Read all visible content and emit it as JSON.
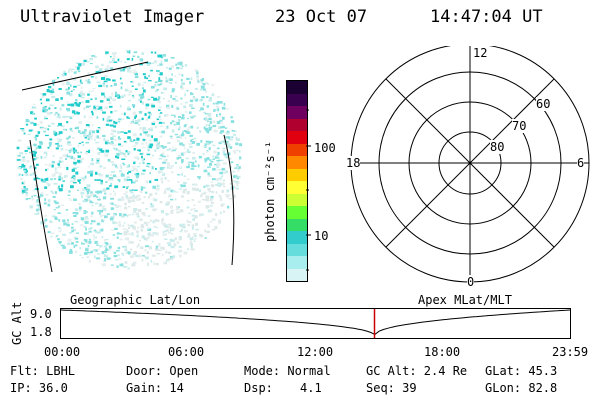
{
  "header": {
    "instrument": "Ultraviolet Imager",
    "date": "23 Oct 07",
    "time": "14:47:04 UT"
  },
  "colorbar": {
    "unit_label": "photon cm⁻²s⁻¹",
    "ticks": [
      "100",
      "10"
    ],
    "colors": [
      "#1a0033",
      "#3a0050",
      "#700060",
      "#b00030",
      "#e00010",
      "#f04000",
      "#ff8800",
      "#ffcc00",
      "#ffff33",
      "#ccff33",
      "#66ff33",
      "#33dd66",
      "#33cccc",
      "#66dddd",
      "#a8eeee",
      "#d8f4f4"
    ]
  },
  "polar_plot": {
    "mlt_labels": {
      "top": "12",
      "left": "18",
      "right": "6",
      "bottom": "0"
    },
    "lat_labels": [
      "60",
      "70",
      "80"
    ]
  },
  "timeline": {
    "left_title": "Geographic Lat/Lon",
    "right_title": "Apex MLat/MLT",
    "ylabel": "GC Alt",
    "ymax": "9.0",
    "ymin": "1.8",
    "xticks": [
      "00:00",
      "06:00",
      "12:00",
      "18:00",
      "23:59"
    ],
    "marker_time_hours": 14.78
  },
  "footer": {
    "flt": "Flt: LBHL",
    "ip": "IP: 36.0",
    "door": "Door: Open",
    "gain": "Gain: 14",
    "mode": "Mode: Normal",
    "dsp_label": "Dsp:",
    "dsp_value": "4.1",
    "gc_alt": "GC Alt: 2.4 Re",
    "seq": "Seq: 39",
    "glat": "GLat: 45.3",
    "glon": "GLon: 82.8"
  }
}
